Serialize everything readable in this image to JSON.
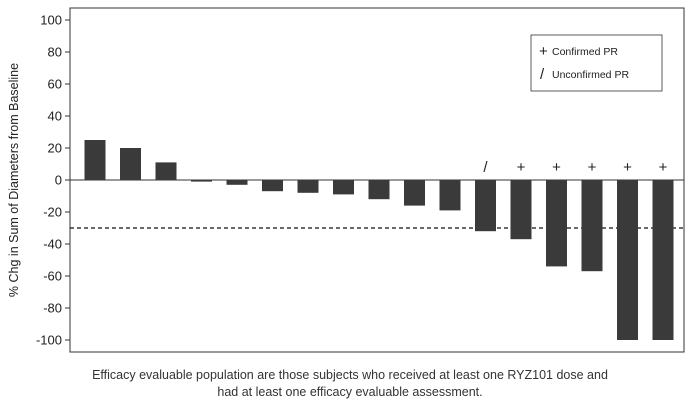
{
  "chart_data": {
    "type": "bar",
    "ylabel": "% Chg in Sum of Diameters from Baseline",
    "ylim": [
      -100,
      100
    ],
    "yticks": [
      -100,
      -80,
      -60,
      -40,
      -20,
      0,
      20,
      40,
      60,
      80,
      100
    ],
    "values": [
      25,
      20,
      11,
      -1,
      -3,
      -7,
      -8,
      -9,
      -12,
      -16,
      -19,
      -32,
      -37,
      -54,
      -57,
      -100,
      -100
    ],
    "markers": [
      "",
      "",
      "",
      "",
      "",
      "",
      "",
      "",
      "",
      "",
      "",
      "/",
      "+",
      "+",
      "+",
      "+",
      "+"
    ],
    "reference_line": -30,
    "bar_color": "#3a3a3a",
    "legend": {
      "placement": "top-right",
      "entries": [
        {
          "symbol": "+",
          "label": "Confirmed PR"
        },
        {
          "symbol": "/",
          "label": "Unconfirmed PR"
        }
      ]
    }
  },
  "caption_line1": "Efficacy evaluable population are those subjects who received at least one RYZ101 dose and",
  "caption_line2": "had at least one efficacy evaluable assessment."
}
